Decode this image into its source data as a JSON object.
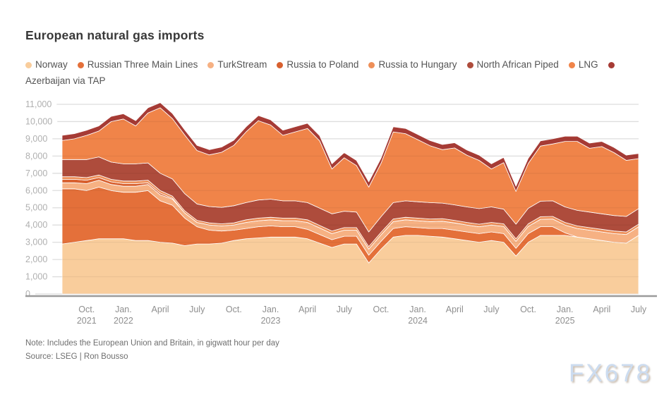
{
  "header": {
    "title": "European natural gas imports"
  },
  "footer": {
    "note": "Note: Includes the European Union and Britain, in gigwatt hour per day",
    "source": "Source: LSEG | Ron Bousso"
  },
  "watermark": {
    "text": "FX678"
  },
  "colors": {
    "grid": "#e9e9e9",
    "axis_line": "#9b9b9b",
    "y_tick_label": "#b0b0b0",
    "x_tick_label": "#8f8f8f"
  },
  "chart_data": {
    "type": "area",
    "stacked": true,
    "title": "European natural gas imports",
    "xlabel": "",
    "ylabel": "",
    "unit": "gigawatt hour per day",
    "grid": true,
    "legend_position": "top",
    "ylim": [
      0,
      11000
    ],
    "y_ticks": [
      0,
      1000,
      2000,
      3000,
      4000,
      5000,
      6000,
      7000,
      8000,
      9000,
      10000,
      11000
    ],
    "x": [
      "2021-08",
      "2021-09",
      "2021-10",
      "2021-11",
      "2021-12",
      "2022-01",
      "2022-02",
      "2022-03",
      "2022-04",
      "2022-05",
      "2022-06",
      "2022-07",
      "2022-08",
      "2022-09",
      "2022-10",
      "2022-11",
      "2022-12",
      "2023-01",
      "2023-02",
      "2023-03",
      "2023-04",
      "2023-05",
      "2023-06",
      "2023-07",
      "2023-08",
      "2023-09",
      "2023-10",
      "2023-11",
      "2023-12",
      "2024-01",
      "2024-02",
      "2024-03",
      "2024-04",
      "2024-05",
      "2024-06",
      "2024-07",
      "2024-08",
      "2024-09",
      "2024-10",
      "2024-11",
      "2024-12",
      "2025-01",
      "2025-02",
      "2025-03",
      "2025-04",
      "2025-05",
      "2025-06",
      "2025-07"
    ],
    "x_ticks": [
      {
        "label": "Oct.",
        "year": "2021",
        "index": 2
      },
      {
        "label": "Jan.",
        "year": "2022",
        "index": 5
      },
      {
        "label": "April",
        "index": 8
      },
      {
        "label": "July",
        "index": 11
      },
      {
        "label": "Oct.",
        "index": 14
      },
      {
        "label": "Jan.",
        "year": "2023",
        "index": 17
      },
      {
        "label": "April",
        "index": 20
      },
      {
        "label": "July",
        "index": 23
      },
      {
        "label": "Oct.",
        "index": 26
      },
      {
        "label": "Jan.",
        "year": "2024",
        "index": 29
      },
      {
        "label": "April",
        "index": 32
      },
      {
        "label": "July",
        "index": 35
      },
      {
        "label": "Oct.",
        "index": 38
      },
      {
        "label": "Jan.",
        "year": "2025",
        "index": 41
      },
      {
        "label": "April",
        "index": 44
      },
      {
        "label": "July",
        "index": 47
      }
    ],
    "series": [
      {
        "name": "Norway",
        "color": "#F9CD9C",
        "values": [
          2900,
          3000,
          3100,
          3200,
          3200,
          3200,
          3100,
          3100,
          3000,
          2950,
          2800,
          2900,
          2900,
          2950,
          3100,
          3200,
          3250,
          3300,
          3300,
          3300,
          3200,
          2950,
          2700,
          2900,
          2900,
          1800,
          2600,
          3300,
          3400,
          3400,
          3350,
          3300,
          3200,
          3100,
          3000,
          3100,
          3000,
          2200,
          3000,
          3400,
          3400,
          3400,
          3300,
          3200,
          3100,
          3000,
          2950,
          3400
        ]
      },
      {
        "name": "Russian Three Main Lines",
        "color": "#E4703A",
        "values": [
          3200,
          3100,
          2900,
          3000,
          2800,
          2700,
          2800,
          2900,
          2400,
          2200,
          1600,
          1000,
          800,
          700,
          600,
          600,
          650,
          650,
          600,
          600,
          550,
          500,
          450,
          450,
          450,
          450,
          450,
          500,
          500,
          450,
          450,
          500,
          500,
          500,
          500,
          500,
          500,
          450,
          500,
          500,
          500,
          150,
          0,
          0,
          0,
          0,
          0,
          0
        ]
      },
      {
        "name": "TurkStream",
        "color": "#F6B183",
        "values": [
          350,
          350,
          400,
          400,
          350,
          350,
          350,
          350,
          350,
          350,
          300,
          250,
          300,
          300,
          300,
          350,
          350,
          350,
          350,
          350,
          400,
          380,
          350,
          350,
          350,
          350,
          380,
          400,
          400,
          400,
          400,
          420,
          420,
          400,
          400,
          400,
          420,
          400,
          420,
          430,
          450,
          450,
          500,
          500,
          500,
          500,
          500,
          500
        ]
      },
      {
        "name": "Russia to Poland",
        "color": "#D8602F",
        "values": [
          200,
          200,
          200,
          150,
          150,
          150,
          150,
          100,
          100,
          50,
          0,
          0,
          0,
          0,
          0,
          0,
          0,
          0,
          0,
          0,
          0,
          0,
          0,
          0,
          0,
          0,
          0,
          0,
          0,
          0,
          0,
          0,
          0,
          0,
          0,
          0,
          0,
          0,
          0,
          0,
          0,
          0,
          0,
          0,
          0,
          0,
          0,
          0
        ]
      },
      {
        "name": "Russia to Hungary",
        "color": "#EE8F58",
        "values": [
          150,
          150,
          150,
          150,
          150,
          150,
          150,
          150,
          150,
          120,
          120,
          120,
          120,
          120,
          120,
          150,
          150,
          150,
          150,
          150,
          150,
          150,
          150,
          150,
          150,
          150,
          150,
          150,
          150,
          150,
          150,
          150,
          150,
          150,
          150,
          150,
          150,
          150,
          150,
          150,
          150,
          150,
          150,
          150,
          150,
          150,
          150,
          150
        ]
      },
      {
        "name": "North African Piped",
        "color": "#AE4C3C",
        "values": [
          1000,
          1000,
          1050,
          1050,
          1000,
          1000,
          1000,
          1000,
          1000,
          1000,
          1000,
          950,
          950,
          950,
          1000,
          1000,
          1050,
          1050,
          1000,
          1000,
          1000,
          1000,
          1000,
          950,
          900,
          850,
          900,
          950,
          950,
          950,
          950,
          900,
          900,
          900,
          900,
          900,
          850,
          850,
          900,
          900,
          900,
          900,
          900,
          900,
          900,
          900,
          900,
          900
        ]
      },
      {
        "name": "LNG",
        "color": "#F08449",
        "values": [
          1100,
          1200,
          1400,
          1500,
          2350,
          2600,
          2200,
          2900,
          3800,
          3500,
          3400,
          3100,
          3000,
          3200,
          3500,
          4100,
          4600,
          4300,
          3800,
          4000,
          4300,
          3900,
          2600,
          3100,
          2700,
          2600,
          3100,
          4100,
          3900,
          3600,
          3300,
          3100,
          3300,
          3000,
          2800,
          2200,
          2700,
          1900,
          2600,
          3200,
          3300,
          3800,
          4000,
          3700,
          3900,
          3650,
          3250,
          2900
        ]
      },
      {
        "name": "Azerbaijan via TAP",
        "color": "#A63B35",
        "values": [
          300,
          300,
          300,
          300,
          300,
          300,
          300,
          300,
          300,
          300,
          300,
          300,
          300,
          300,
          300,
          300,
          300,
          300,
          300,
          300,
          300,
          300,
          300,
          300,
          300,
          300,
          300,
          300,
          300,
          300,
          300,
          300,
          300,
          300,
          300,
          300,
          300,
          300,
          300,
          300,
          300,
          300,
          300,
          300,
          300,
          300,
          300,
          300
        ]
      }
    ]
  }
}
